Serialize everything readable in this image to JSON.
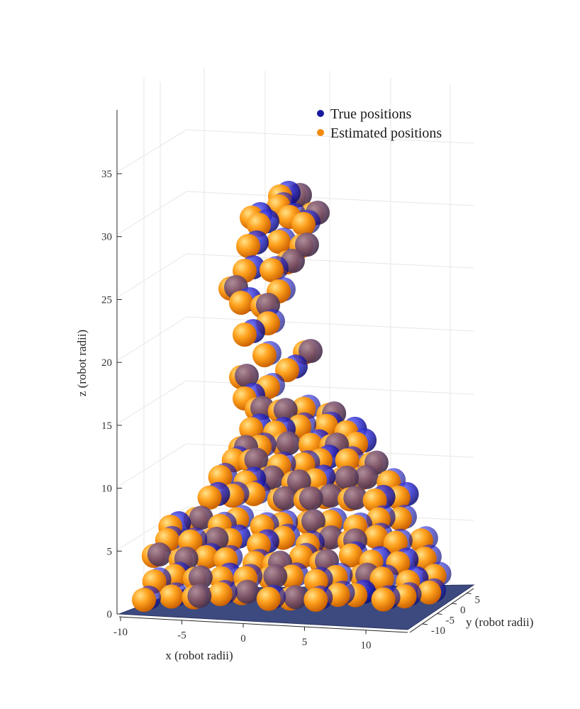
{
  "chart_data": {
    "type": "scatter3d",
    "title": "",
    "xlabel": "x (robot radii)",
    "ylabel": "y (robot radii)",
    "zlabel": "z (robot radii)",
    "xlim": [
      -12,
      12
    ],
    "ylim": [
      -12,
      8
    ],
    "zlim": [
      0,
      38
    ],
    "x_ticks": [
      "-10",
      "-5",
      "0",
      "5",
      "10"
    ],
    "y_ticks": [
      "-10",
      "-5",
      "0",
      "5"
    ],
    "z_ticks": [
      "0",
      "5",
      "10",
      "15",
      "20",
      "25",
      "30",
      "35"
    ],
    "grid": true,
    "legend_position": "top-right",
    "floor_color": "#3d4a80",
    "series": [
      {
        "name": "True positions",
        "color": "#1a1aa0"
      },
      {
        "name": "Estimated positions",
        "color": "#f28a0e"
      }
    ]
  }
}
